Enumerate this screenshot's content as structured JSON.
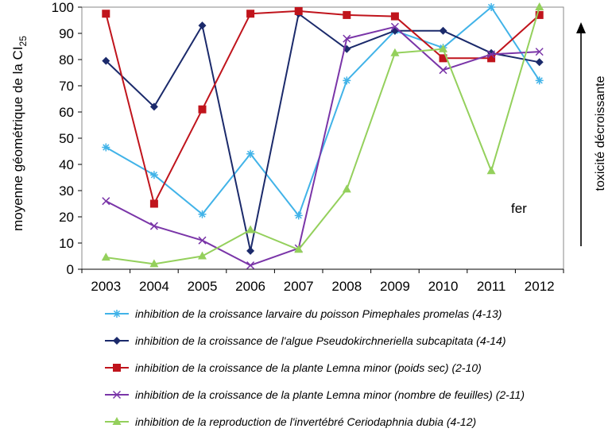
{
  "chart_data": {
    "type": "line",
    "x": [
      "2003",
      "2004",
      "2005",
      "2006",
      "2007",
      "2008",
      "2009",
      "2010",
      "2011",
      "2012"
    ],
    "ylim": [
      0,
      100
    ],
    "yticks": [
      "0",
      "10",
      "20",
      "30",
      "40",
      "50",
      "60",
      "70",
      "80",
      "90",
      "100"
    ],
    "ylabel_pre": "moyenne géométrique de la CI",
    "ylabel_sub": "25",
    "side_label": "toxicité décroissante",
    "annotation": "fer",
    "series": [
      {
        "name": "inhibition de la croissance larvaire du poisson Pimephales promelas (4-13)",
        "color": "#41b3e8",
        "marker": "asterisk",
        "values": [
          46.5,
          36,
          21,
          44,
          20.5,
          72,
          91,
          84.5,
          100,
          72
        ]
      },
      {
        "name": "inhibition de la croissance de l'algue Pseudokirchneriella subcapitata (4-14)",
        "color": "#1b2a6b",
        "marker": "diamond",
        "values": [
          79.5,
          62,
          93,
          7,
          97.5,
          84,
          91,
          91,
          82.5,
          79
        ]
      },
      {
        "name": "inhibition de la croissance de la plante Lemna minor (poids sec) (2-10)",
        "color": "#c0141c",
        "marker": "square",
        "values": [
          97.5,
          25,
          61,
          97.5,
          98.5,
          97,
          96.5,
          80.5,
          80.5,
          97
        ]
      },
      {
        "name": "inhibition de la croissance de la plante Lemna minor (nombre de feuilles) (2-11)",
        "color": "#7a35a8",
        "marker": "x",
        "values": [
          26,
          16.5,
          11,
          1.5,
          8,
          88,
          92.5,
          76,
          82,
          83
        ]
      },
      {
        "name": "inhibition de la reproduction de l'invertébré Ceriodaphnia dubia (4-12)",
        "color": "#94d05c",
        "marker": "triangle",
        "values": [
          4.5,
          2,
          5,
          15,
          7.5,
          30.5,
          82.5,
          84,
          37.5,
          100
        ]
      }
    ]
  }
}
